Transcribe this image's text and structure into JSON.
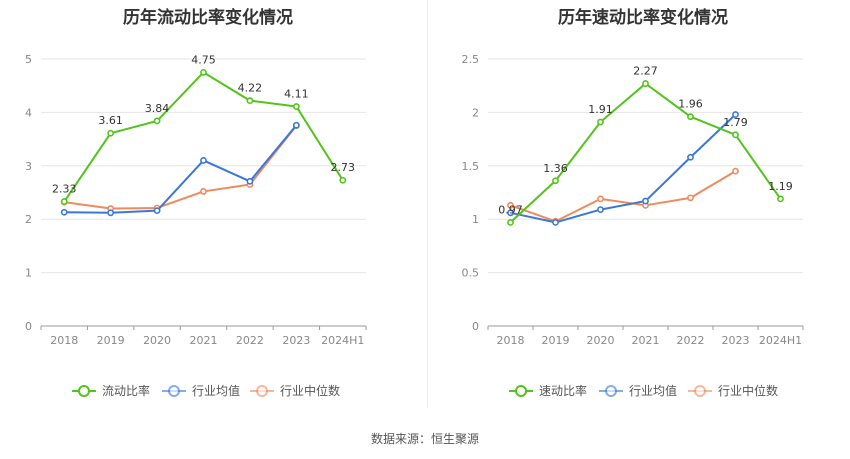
{
  "chart_data": [
    {
      "type": "line",
      "title": "历年流动比率变化情况",
      "categories": [
        "2018",
        "2019",
        "2020",
        "2021",
        "2022",
        "2023",
        "2024H1"
      ],
      "ylim": [
        0,
        5
      ],
      "yticks": [
        "0",
        "1",
        "2",
        "3",
        "4",
        "5"
      ],
      "grid": true,
      "legend_position": "bottom",
      "series": [
        {
          "name": "流动比率",
          "color": "#52c41a",
          "values": [
            2.33,
            3.61,
            3.84,
            4.75,
            4.22,
            4.11,
            2.73
          ],
          "labels": [
            "2.33",
            "3.61",
            "3.84",
            "4.75",
            "4.22",
            "4.11",
            "2.73"
          ]
        },
        {
          "name": "行业均值",
          "color": "#3a78d6",
          "values": [
            2.13,
            2.12,
            2.16,
            3.1,
            2.71,
            3.76,
            null
          ]
        },
        {
          "name": "行业中位数",
          "color": "#f08a5d",
          "values": [
            2.32,
            2.2,
            2.21,
            2.52,
            2.65,
            3.75,
            null
          ]
        }
      ]
    },
    {
      "type": "line",
      "title": "历年速动比率变化情况",
      "categories": [
        "2018",
        "2019",
        "2020",
        "2021",
        "2022",
        "2023",
        "2024H1"
      ],
      "ylim": [
        0,
        2.5
      ],
      "yticks": [
        "0",
        "0.5",
        "1",
        "1.5",
        "2",
        "2.5"
      ],
      "grid": true,
      "legend_position": "bottom",
      "series": [
        {
          "name": "速动比率",
          "color": "#52c41a",
          "values": [
            0.97,
            1.36,
            1.91,
            2.27,
            1.96,
            1.79,
            1.19
          ],
          "labels": [
            "0.97",
            "1.36",
            "1.91",
            "2.27",
            "1.96",
            "1.79",
            "1.19"
          ]
        },
        {
          "name": "行业均值",
          "color": "#3a78d6",
          "values": [
            1.06,
            0.97,
            1.09,
            1.17,
            1.58,
            1.98,
            null
          ]
        },
        {
          "name": "行业中位数",
          "color": "#f08a5d",
          "values": [
            1.13,
            0.98,
            1.19,
            1.13,
            1.2,
            1.45,
            null
          ]
        }
      ]
    }
  ],
  "source": "数据来源：恒生聚源"
}
